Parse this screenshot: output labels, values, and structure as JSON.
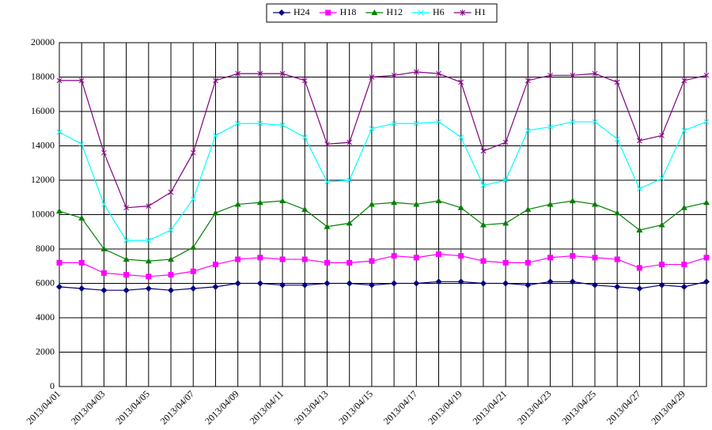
{
  "chart_data": {
    "type": "line",
    "categories": [
      "2013/04/01",
      null,
      "2013/04/03",
      null,
      "2013/04/05",
      null,
      "2013/04/07",
      null,
      "2013/04/09",
      null,
      "2013/04/11",
      null,
      "2013/04/13",
      null,
      "2013/04/15",
      null,
      "2013/04/17",
      null,
      "2013/04/19",
      null,
      "2013/04/21",
      null,
      "2013/04/23",
      null,
      "2013/04/25",
      null,
      "2013/04/27",
      null,
      "2013/04/29",
      null
    ],
    "series": [
      {
        "name": "H24",
        "color": "#000080",
        "marker": "diamond",
        "values": [
          5800,
          5700,
          5600,
          5600,
          5700,
          5600,
          5700,
          5800,
          6000,
          6000,
          5900,
          5900,
          6000,
          6000,
          5900,
          6000,
          6000,
          6100,
          6100,
          6000,
          6000,
          5900,
          6100,
          6100,
          5900,
          5800,
          5700,
          5900,
          5800,
          6100
        ]
      },
      {
        "name": "H18",
        "color": "#ff00ff",
        "marker": "square",
        "values": [
          7200,
          7200,
          6600,
          6500,
          6400,
          6500,
          6700,
          7100,
          7400,
          7500,
          7400,
          7400,
          7200,
          7200,
          7300,
          7600,
          7500,
          7700,
          7600,
          7300,
          7200,
          7200,
          7500,
          7600,
          7500,
          7400,
          6900,
          7100,
          7100,
          7500
        ]
      },
      {
        "name": "H12",
        "color": "#008000",
        "marker": "triangle",
        "values": [
          10200,
          9800,
          8000,
          7400,
          7300,
          7400,
          8100,
          10100,
          10600,
          10700,
          10800,
          10300,
          9300,
          9500,
          10600,
          10700,
          10600,
          10800,
          10400,
          9400,
          9500,
          10300,
          10600,
          10800,
          10600,
          10100,
          9100,
          9400,
          10400,
          10700
        ]
      },
      {
        "name": "H6",
        "color": "#00ffff",
        "marker": "x",
        "values": [
          14800,
          14100,
          10600,
          8500,
          8500,
          9100,
          10900,
          14600,
          15300,
          15300,
          15200,
          14500,
          11900,
          12000,
          15000,
          15300,
          15300,
          15400,
          14500,
          11700,
          12000,
          14900,
          15100,
          15400,
          15400,
          14400,
          11500,
          12100,
          14900,
          15400
        ]
      },
      {
        "name": "H1",
        "color": "#800080",
        "marker": "star",
        "values": [
          17800,
          17800,
          13600,
          10400,
          10500,
          11300,
          13600,
          17800,
          18200,
          18200,
          18200,
          17800,
          14100,
          14200,
          18000,
          18100,
          18300,
          18200,
          17700,
          13700,
          14200,
          17800,
          18100,
          18100,
          18200,
          17700,
          14300,
          14600,
          17800,
          18100
        ]
      }
    ],
    "ylim": [
      0,
      20000
    ],
    "yticks": [
      0,
      2000,
      4000,
      6000,
      8000,
      10000,
      12000,
      14000,
      16000,
      18000,
      20000
    ],
    "grid": true,
    "legend": "top"
  }
}
